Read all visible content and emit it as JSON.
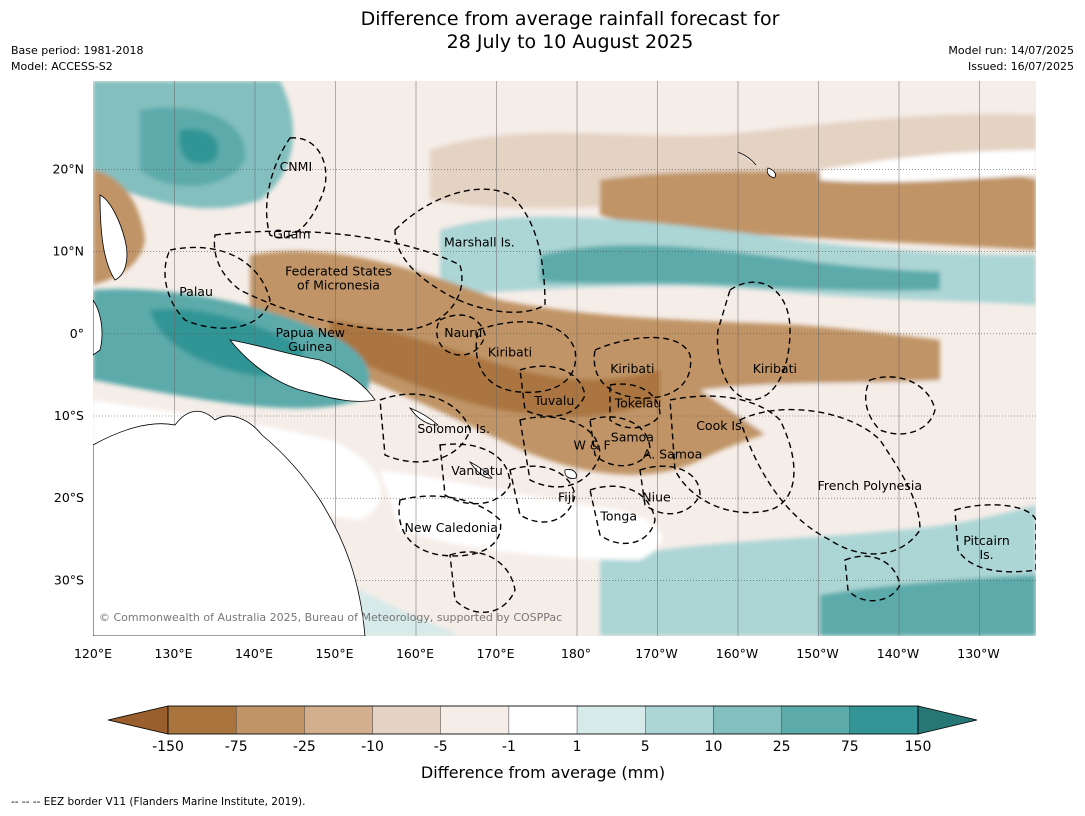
{
  "title_line1": "Difference from average rainfall forecast for",
  "title_line2": "28 July to 10 August 2025",
  "meta_left": {
    "base_period": "Base period: 1981-2018",
    "model": "Model: ACCESS-S2"
  },
  "meta_right": {
    "model_run": "Model run: 14/07/2025",
    "issued": "Issued: 16/07/2025"
  },
  "copyright": "© Commonwealth of Australia 2025, Bureau of Meteorology, supported by COSPPac",
  "footer_legend": "--  --  -- EEZ border V11 (Flanders Marine Institute, 2019).",
  "lon_ticks": [
    "120°E",
    "130°E",
    "140°E",
    "150°E",
    "160°E",
    "170°E",
    "180°",
    "170°W",
    "160°W",
    "150°W",
    "140°W",
    "130°W"
  ],
  "lat_ticks": [
    "20°N",
    "10°N",
    "0°",
    "10°S",
    "20°S",
    "30°S"
  ],
  "colorbar": {
    "title": "Difference from average (mm)",
    "ticks": [
      "-150",
      "-75",
      "-25",
      "-10",
      "-5",
      "-1",
      "1",
      "5",
      "10",
      "25",
      "75",
      "150"
    ],
    "colors": [
      "#9a5f2c",
      "#aa743f",
      "#c09466",
      "#d2ae8d",
      "#e4d2c2",
      "#f5ede8",
      "#ffffff",
      "#d6eae9",
      "#acd5d5",
      "#83bfbf",
      "#5caaaa",
      "#339595",
      "#287777"
    ]
  },
  "regions": [
    {
      "label": "CNMI",
      "lon": 145.2,
      "lat": 20.3
    },
    {
      "label": "Guam",
      "lon": 144.7,
      "lat": 12.1
    },
    {
      "label": "Marshall Is.",
      "lon": 168.0,
      "lat": 11.1
    },
    {
      "label": "Federated States",
      "lon": 150.5,
      "lat": 7.6
    },
    {
      "label": "of Micronesia",
      "lon": 150.5,
      "lat": 5.9
    },
    {
      "label": "Palau",
      "lon": 132.8,
      "lat": 5.1
    },
    {
      "label": "Papua New",
      "lon": 147.0,
      "lat": 0.1
    },
    {
      "label": "Guinea",
      "lon": 147.0,
      "lat": -1.6
    },
    {
      "label": "Nauru",
      "lon": 166.0,
      "lat": 0.1
    },
    {
      "label": "Kiribati",
      "lon": 171.8,
      "lat": -2.3
    },
    {
      "label": "Kiribati",
      "lon": 187.0,
      "lat": -4.3
    },
    {
      "label": "Kiribati",
      "lon": 204.7,
      "lat": -4.3
    },
    {
      "label": "Tuvalu",
      "lon": 177.3,
      "lat": -8.2
    },
    {
      "label": "Tokelau",
      "lon": 187.7,
      "lat": -8.5
    },
    {
      "label": "Solomon Is.",
      "lon": 164.8,
      "lat": -11.6
    },
    {
      "label": "Cook Is.",
      "lon": 198.0,
      "lat": -11.2
    },
    {
      "label": "Samoa",
      "lon": 187.0,
      "lat": -12.6
    },
    {
      "label": "W & F",
      "lon": 182.0,
      "lat": -13.6
    },
    {
      "label": "A. Samoa",
      "lon": 192.0,
      "lat": -14.7
    },
    {
      "label": "Vanuatu",
      "lon": 167.7,
      "lat": -16.7
    },
    {
      "label": "French Polynesia",
      "lon": 216.5,
      "lat": -18.5
    },
    {
      "label": "Fiji",
      "lon": 178.8,
      "lat": -19.9
    },
    {
      "label": "Niue",
      "lon": 190.0,
      "lat": -19.9
    },
    {
      "label": "Tonga",
      "lon": 185.3,
      "lat": -22.2
    },
    {
      "label": "New Caledonia",
      "lon": 164.5,
      "lat": -23.6
    },
    {
      "label": "Pitcairn",
      "lon": 231.0,
      "lat": -25.2
    },
    {
      "label": "Is.",
      "lon": 231.0,
      "lat": -26.9
    }
  ]
}
